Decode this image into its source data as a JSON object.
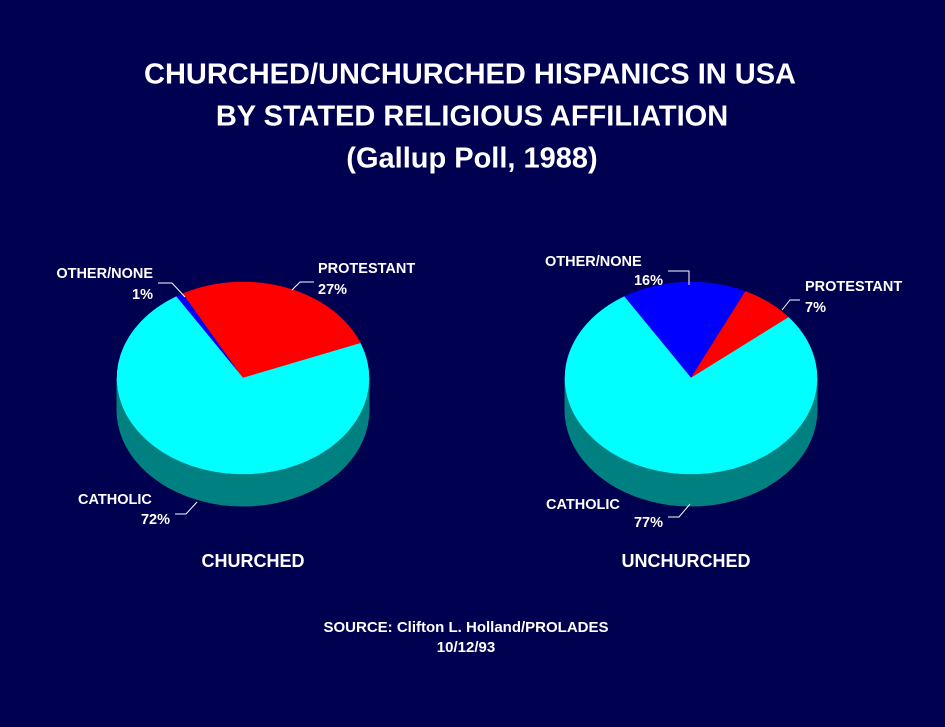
{
  "title": [
    "CHURCHED/UNCHURCHED HISPANICS IN USA",
    "BY STATED RELIGIOUS AFFILIATION",
    "(Gallup Poll, 1988)"
  ],
  "source": [
    "SOURCE:  Clifton L. Holland/PROLADES",
    "10/12/93"
  ],
  "chart_data": [
    {
      "type": "pie",
      "title": "CHURCHED",
      "categories": [
        "OTHER/NONE",
        "PROTESTANT",
        "CATHOLIC"
      ],
      "values": [
        1,
        27,
        72
      ],
      "value_labels": [
        "1%",
        "27%",
        "72%"
      ],
      "colors": [
        "#0000ff",
        "#ff0000",
        "#00ffff"
      ]
    },
    {
      "type": "pie",
      "title": "UNCHURCHED",
      "categories": [
        "OTHER/NONE",
        "PROTESTANT",
        "CATHOLIC"
      ],
      "values": [
        16,
        7,
        77
      ],
      "value_labels": [
        "16%",
        "7%",
        "77%"
      ],
      "colors": [
        "#0000ff",
        "#ff0000",
        "#00ffff"
      ]
    }
  ]
}
